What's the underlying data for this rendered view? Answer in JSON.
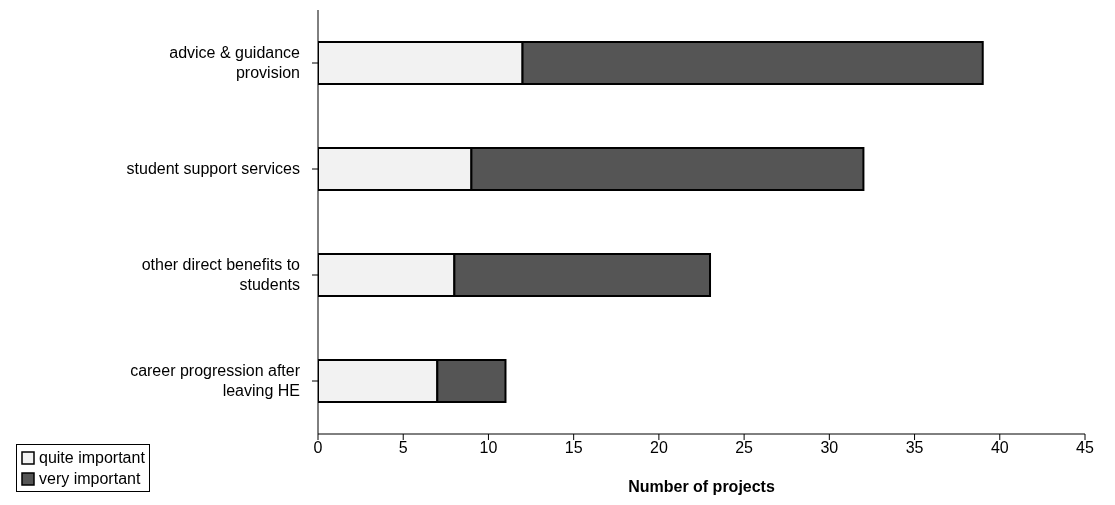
{
  "chart_data": {
    "type": "bar",
    "orientation": "horizontal",
    "stacked": true,
    "xlabel": "Number of projects",
    "categories": [
      "advice & guidance provision",
      "student support services",
      "other direct benefits to students",
      "career progression after leaving HE"
    ],
    "series": [
      {
        "name": "quite important",
        "color": "#f2f2f2",
        "values": [
          12,
          9,
          8,
          7
        ]
      },
      {
        "name": "very important",
        "color": "#555555",
        "values": [
          27,
          23,
          15,
          4
        ]
      }
    ],
    "xlim": [
      0,
      45
    ],
    "xticks": [
      0,
      5,
      10,
      15,
      20,
      25,
      30,
      35,
      40,
      45
    ],
    "grid": false,
    "legend": "bottom left"
  }
}
